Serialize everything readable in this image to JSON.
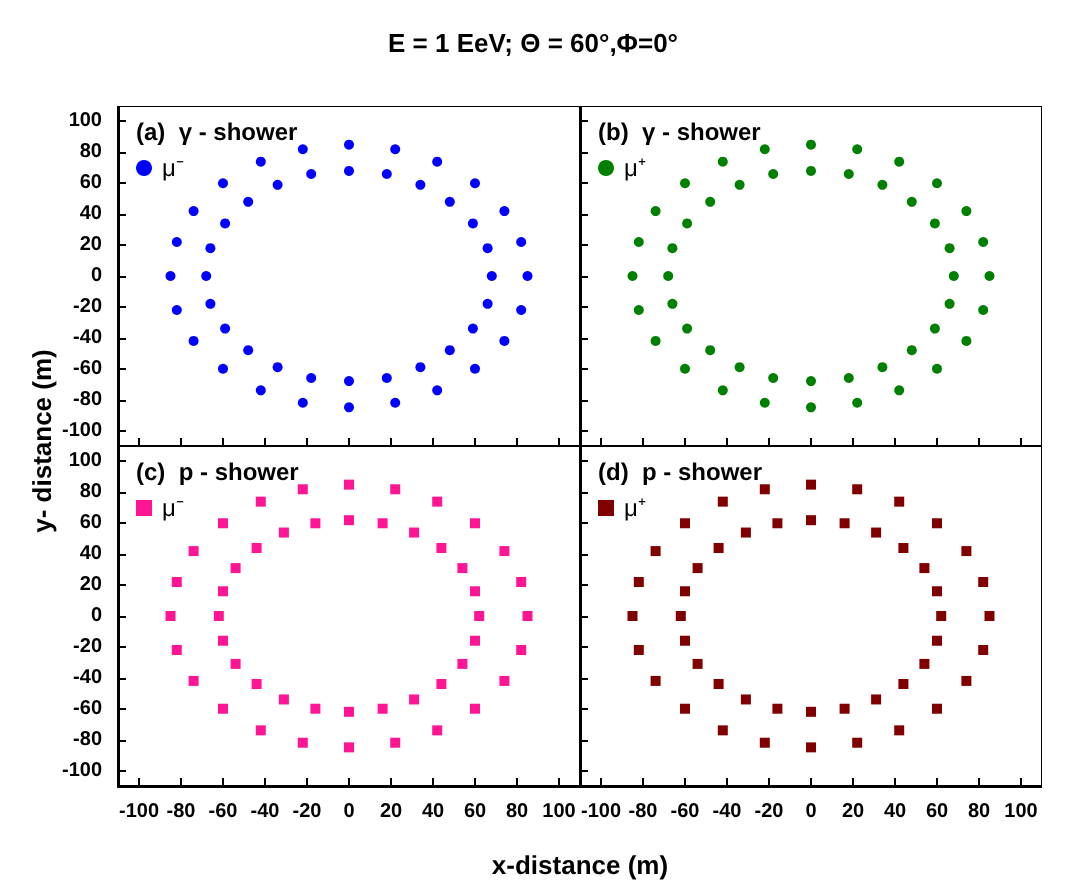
{
  "chart_data": [
    {
      "type": "scatter",
      "title": "E = 1 EeV; Θ = 60°,Φ=0°",
      "ylabel": "y- distance (m)",
      "subtitle": "(a)  γ - shower",
      "xlim": [
        -110,
        110
      ],
      "ylim": [
        -110,
        110
      ],
      "xticks": [
        -100,
        -80,
        -60,
        -40,
        -20,
        0,
        20,
        40,
        60,
        80,
        100
      ],
      "yticks": [
        -100,
        -80,
        -60,
        -40,
        -20,
        0,
        20,
        40,
        60,
        80,
        100
      ],
      "tick_labels": "y",
      "legend": "top left",
      "marker": "circle",
      "grid": false,
      "series": [
        {
          "name": "μ⁻",
          "color": "#0000ff",
          "x": [
            85,
            82,
            74,
            60,
            42,
            22,
            0,
            -22,
            -42,
            -60,
            -74,
            -82,
            -85,
            -82,
            -74,
            -60,
            -42,
            -22,
            0,
            22,
            42,
            60,
            74,
            82,
            68,
            66,
            59,
            48,
            34,
            18,
            0,
            -18,
            -34,
            -48,
            -59,
            -66,
            -68,
            -66,
            -59,
            -48,
            -34,
            -18,
            0,
            18,
            34,
            48,
            59,
            66
          ],
          "values": [
            0,
            22,
            42,
            60,
            74,
            82,
            85,
            82,
            74,
            60,
            42,
            22,
            0,
            -22,
            -42,
            -60,
            -74,
            -82,
            -85,
            -82,
            -74,
            -60,
            -42,
            -22,
            0,
            18,
            34,
            48,
            59,
            66,
            68,
            66,
            59,
            48,
            34,
            18,
            0,
            -18,
            -34,
            -48,
            -59,
            -66,
            -68,
            -66,
            -59,
            -48,
            -34,
            -18
          ]
        }
      ]
    },
    {
      "type": "scatter",
      "subtitle": "(b)  γ - shower",
      "xlim": [
        -110,
        110
      ],
      "ylim": [
        -110,
        110
      ],
      "xticks": [
        -100,
        -80,
        -60,
        -40,
        -20,
        0,
        20,
        40,
        60,
        80,
        100
      ],
      "yticks": [
        -100,
        -80,
        -60,
        -40,
        -20,
        0,
        20,
        40,
        60,
        80,
        100
      ],
      "tick_labels": false,
      "legend": "top left",
      "marker": "circle",
      "grid": false,
      "series": [
        {
          "name": "μ⁺",
          "color": "#008000",
          "x": [
            85,
            82,
            74,
            60,
            42,
            22,
            0,
            -22,
            -42,
            -60,
            -74,
            -82,
            -85,
            -82,
            -74,
            -60,
            -42,
            -22,
            0,
            22,
            42,
            60,
            74,
            82,
            68,
            66,
            59,
            48,
            34,
            18,
            0,
            -18,
            -34,
            -48,
            -59,
            -66,
            -68,
            -66,
            -59,
            -48,
            -34,
            -18,
            0,
            18,
            34,
            48,
            59,
            66
          ],
          "values": [
            0,
            22,
            42,
            60,
            74,
            82,
            85,
            82,
            74,
            60,
            42,
            22,
            0,
            -22,
            -42,
            -60,
            -74,
            -82,
            -85,
            -82,
            -74,
            -60,
            -42,
            -22,
            0,
            18,
            34,
            48,
            59,
            66,
            68,
            66,
            59,
            48,
            34,
            18,
            0,
            -18,
            -34,
            -48,
            -59,
            -66,
            -68,
            -66,
            -59,
            -48,
            -34,
            -18
          ]
        }
      ]
    },
    {
      "type": "scatter",
      "xlabel": "x-distance (m)",
      "subtitle": "(c)  p - shower",
      "xlim": [
        -110,
        110
      ],
      "ylim": [
        -110,
        110
      ],
      "xticks": [
        -100,
        -80,
        -60,
        -40,
        -20,
        0,
        20,
        40,
        60,
        80,
        100
      ],
      "yticks": [
        -100,
        -80,
        -60,
        -40,
        -20,
        0,
        20,
        40,
        60,
        80,
        100
      ],
      "legend": "top left",
      "marker": "square",
      "grid": false,
      "series": [
        {
          "name": "μ⁻",
          "color": "#ff1493",
          "x": [
            85,
            82,
            74,
            60,
            42,
            22,
            0,
            -22,
            -42,
            -60,
            -74,
            -82,
            -85,
            -82,
            -74,
            -60,
            -42,
            -22,
            0,
            22,
            42,
            60,
            74,
            82,
            62,
            60,
            54,
            44,
            31,
            16,
            0,
            -16,
            -31,
            -44,
            -54,
            -60,
            -62,
            -60,
            -54,
            -44,
            -31,
            -16,
            0,
            16,
            31,
            44,
            54,
            60
          ],
          "values": [
            0,
            22,
            42,
            60,
            74,
            82,
            85,
            82,
            74,
            60,
            42,
            22,
            0,
            -22,
            -42,
            -60,
            -74,
            -82,
            -85,
            -82,
            -74,
            -60,
            -42,
            -22,
            0,
            16,
            31,
            44,
            54,
            60,
            62,
            60,
            54,
            44,
            31,
            16,
            0,
            -16,
            -31,
            -44,
            -54,
            -60,
            -62,
            -60,
            -54,
            -44,
            -31,
            -16
          ]
        }
      ]
    },
    {
      "type": "scatter",
      "subtitle": "(d)  p - shower",
      "xlim": [
        -110,
        110
      ],
      "ylim": [
        -110,
        110
      ],
      "xticks": [
        -100,
        -80,
        -60,
        -40,
        -20,
        0,
        20,
        40,
        60,
        80,
        100
      ],
      "yticks": [
        -100,
        -80,
        -60,
        -40,
        -20,
        0,
        20,
        40,
        60,
        80,
        100
      ],
      "tick_labels": "x",
      "legend": "top left",
      "marker": "square",
      "grid": false,
      "series": [
        {
          "name": "μ⁺",
          "color": "#800000",
          "x": [
            85,
            82,
            74,
            60,
            42,
            22,
            0,
            -22,
            -42,
            -60,
            -74,
            -82,
            -85,
            -82,
            -74,
            -60,
            -42,
            -22,
            0,
            22,
            42,
            60,
            74,
            82,
            62,
            60,
            54,
            44,
            31,
            16,
            0,
            -16,
            -31,
            -44,
            -54,
            -60,
            -62,
            -60,
            -54,
            -44,
            -31,
            -16,
            0,
            16,
            31,
            44,
            54,
            60
          ],
          "values": [
            0,
            22,
            42,
            60,
            74,
            82,
            85,
            82,
            74,
            60,
            42,
            22,
            0,
            -22,
            -42,
            -60,
            -74,
            -82,
            -85,
            -82,
            -74,
            -60,
            -42,
            -22,
            0,
            16,
            31,
            44,
            54,
            60,
            62,
            60,
            54,
            44,
            31,
            16,
            0,
            -16,
            -31,
            -44,
            -54,
            -60,
            -62,
            -60,
            -54,
            -44,
            -31,
            -16
          ]
        }
      ]
    }
  ]
}
